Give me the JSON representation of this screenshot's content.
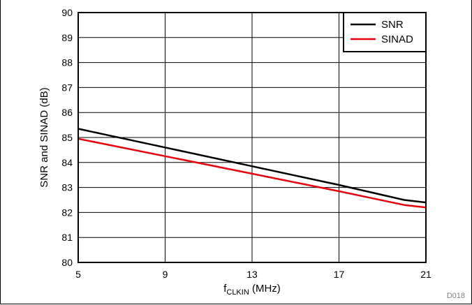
{
  "chart_data": {
    "type": "line",
    "title": "",
    "xlabel": {
      "main": "f",
      "sub": "CLKIN",
      "rest": " (MHz)"
    },
    "ylabel": "SNR and SINAD (dB)",
    "xlim": [
      5,
      21
    ],
    "ylim": [
      80,
      90
    ],
    "xticks": [
      5,
      9,
      13,
      17,
      21
    ],
    "yticks": [
      80,
      81,
      82,
      83,
      84,
      85,
      86,
      87,
      88,
      89,
      90
    ],
    "grid": true,
    "legend_position": "top-right",
    "series": [
      {
        "name": "SNR",
        "color": "#000000",
        "x": [
          5,
          9,
          13,
          17,
          20,
          21
        ],
        "y": [
          85.35,
          84.6,
          83.85,
          83.1,
          82.5,
          82.4
        ]
      },
      {
        "name": "SINAD",
        "color": "#e8000b",
        "x": [
          5,
          9,
          13,
          17,
          20,
          21
        ],
        "y": [
          84.95,
          84.25,
          83.55,
          82.85,
          82.3,
          82.2
        ]
      }
    ],
    "annotation": "D018"
  }
}
